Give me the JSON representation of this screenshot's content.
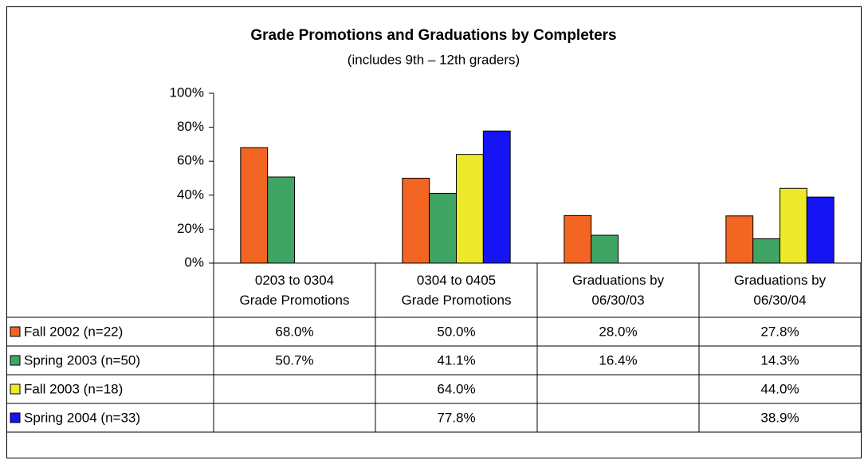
{
  "chart_data": {
    "type": "bar",
    "title": "Grade Promotions and Graduations by Completers",
    "subtitle": "(includes 9th – 12th graders)",
    "categories": [
      "0203 to 0304\nGrade Promotions",
      "0304 to 0405\nGrade Promotions",
      "Graduations by\n06/30/03",
      "Graduations by\n06/30/04"
    ],
    "series": [
      {
        "name": "Fall 2002 (n=22)",
        "color": "#f26522",
        "values": [
          68.0,
          50.0,
          28.0,
          27.8
        ],
        "value_labels": [
          "68.0%",
          "50.0%",
          "28.0%",
          "27.8%"
        ]
      },
      {
        "name": "Spring 2003 (n=50)",
        "color": "#3fa564",
        "values": [
          50.7,
          41.1,
          16.4,
          14.3
        ],
        "value_labels": [
          "50.7%",
          "41.1%",
          "16.4%",
          "14.3%"
        ]
      },
      {
        "name": "Fall 2003 (n=18)",
        "color": "#ecea2a",
        "values": [
          null,
          64.0,
          null,
          44.0
        ],
        "value_labels": [
          null,
          "64.0%",
          null,
          "44.0%"
        ]
      },
      {
        "name": "Spring 2004 (n=33)",
        "color": "#1414f5",
        "values": [
          null,
          77.8,
          null,
          38.9
        ],
        "value_labels": [
          null,
          "77.8%",
          null,
          "38.9%"
        ]
      }
    ],
    "ylim": [
      0,
      100
    ],
    "yticks": [
      {
        "value": 0,
        "label": "0%"
      },
      {
        "value": 20,
        "label": "20%"
      },
      {
        "value": 40,
        "label": "40%"
      },
      {
        "value": 60,
        "label": "60%"
      },
      {
        "value": 80,
        "label": "80%"
      },
      {
        "value": 100,
        "label": "100%"
      }
    ]
  }
}
